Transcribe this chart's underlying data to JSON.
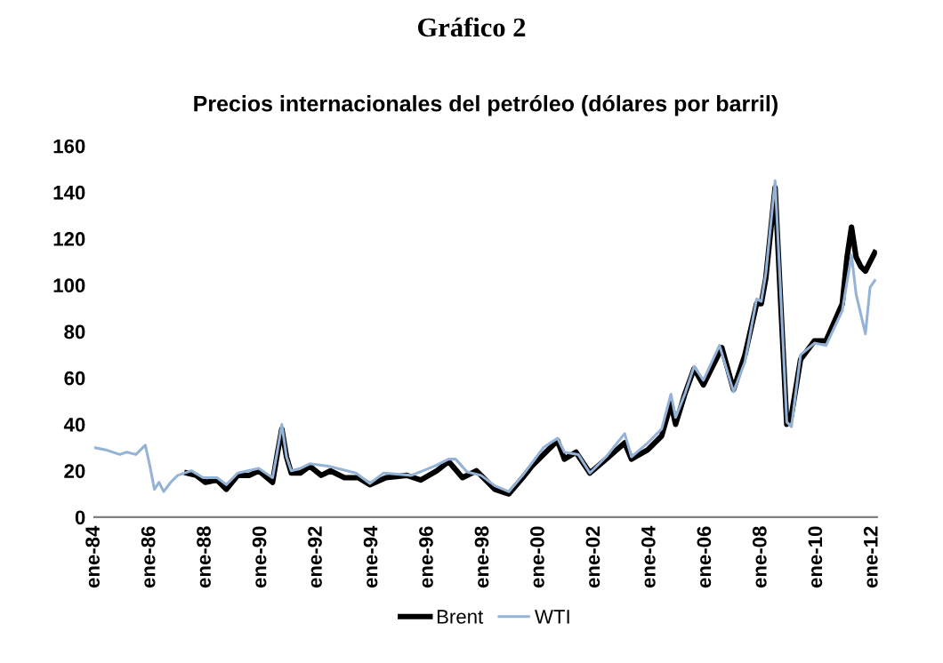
{
  "chart_data": {
    "type": "line",
    "title": "Gráfico 2",
    "subtitle": "Precios internacionales del petróleo (dólares por barril)",
    "xlim": [
      "1984-01",
      "2012-03"
    ],
    "xticks": [
      {
        "value": "1984-01",
        "label": "ene-84"
      },
      {
        "value": "1986-01",
        "label": "ene-86"
      },
      {
        "value": "1988-01",
        "label": "ene-88"
      },
      {
        "value": "1990-01",
        "label": "ene-90"
      },
      {
        "value": "1992-01",
        "label": "ene-92"
      },
      {
        "value": "1994-01",
        "label": "ene-94"
      },
      {
        "value": "1996-01",
        "label": "ene-96"
      },
      {
        "value": "1998-01",
        "label": "ene-98"
      },
      {
        "value": "2000-01",
        "label": "ene-00"
      },
      {
        "value": "2002-01",
        "label": "ene-02"
      },
      {
        "value": "2004-01",
        "label": "ene-04"
      },
      {
        "value": "2006-01",
        "label": "ene-06"
      },
      {
        "value": "2008-01",
        "label": "ene-08"
      },
      {
        "value": "2010-01",
        "label": "ene-10"
      },
      {
        "value": "2012-01",
        "label": "ene-12"
      }
    ],
    "ylim": [
      0,
      160
    ],
    "yticks": [
      0,
      20,
      40,
      60,
      80,
      100,
      120,
      140,
      160
    ],
    "grid": false,
    "legend": "bottom",
    "series": [
      {
        "name": "Brent",
        "color": "#000000",
        "x": [
          "1987-05",
          "1987-09",
          "1988-01",
          "1988-06",
          "1988-10",
          "1989-03",
          "1989-08",
          "1989-12",
          "1990-06",
          "1990-08",
          "1990-10",
          "1990-12",
          "1991-02",
          "1991-06",
          "1991-10",
          "1992-03",
          "1992-07",
          "1993-01",
          "1993-07",
          "1993-12",
          "1994-07",
          "1995-04",
          "1995-10",
          "1996-05",
          "1996-10",
          "1997-04",
          "1997-10",
          "1998-06",
          "1998-12",
          "1999-06",
          "1999-10",
          "2000-03",
          "2000-09",
          "2000-12",
          "2001-05",
          "2001-11",
          "2002-06",
          "2003-02",
          "2003-05",
          "2003-12",
          "2004-06",
          "2004-10",
          "2004-12",
          "2005-04",
          "2005-08",
          "2005-12",
          "2006-08",
          "2007-01",
          "2007-06",
          "2007-11",
          "2008-01",
          "2008-03",
          "2008-07",
          "2008-09",
          "2008-12",
          "2009-02",
          "2009-06",
          "2009-12",
          "2010-05",
          "2010-12",
          "2011-02",
          "2011-04",
          "2011-06",
          "2011-08",
          "2011-10",
          "2011-12",
          "2012-02"
        ],
        "values": [
          19,
          18,
          15,
          16,
          12,
          18,
          18,
          20,
          15,
          27,
          38,
          26,
          19,
          19,
          22,
          18,
          20,
          17,
          17,
          14,
          17,
          18,
          16,
          20,
          24,
          17,
          20,
          12,
          10,
          17,
          22,
          27,
          33,
          25,
          28,
          19,
          25,
          32,
          25,
          29,
          35,
          49,
          40,
          53,
          64,
          57,
          73,
          55,
          70,
          92,
          92,
          103,
          142,
          100,
          40,
          44,
          68,
          76,
          76,
          92,
          112,
          125,
          112,
          108,
          106,
          110,
          114
        ]
      },
      {
        "name": "WTI",
        "color": "#95b3d7",
        "x": [
          "1984-01",
          "1984-06",
          "1984-12",
          "1985-03",
          "1985-07",
          "1985-11",
          "1986-01",
          "1986-03",
          "1986-05",
          "1986-07",
          "1986-10",
          "1987-01",
          "1987-07",
          "1987-12",
          "1988-06",
          "1988-10",
          "1989-03",
          "1989-12",
          "1990-06",
          "1990-08",
          "1990-10",
          "1990-12",
          "1991-02",
          "1991-06",
          "1991-10",
          "1992-06",
          "1993-06",
          "1993-12",
          "1994-06",
          "1995-06",
          "1996-04",
          "1996-10",
          "1997-01",
          "1997-06",
          "1997-12",
          "1998-06",
          "1998-12",
          "1999-06",
          "1999-12",
          "2000-03",
          "2000-09",
          "2000-12",
          "2001-06",
          "2001-11",
          "2002-06",
          "2003-02",
          "2003-05",
          "2003-12",
          "2004-06",
          "2004-10",
          "2004-12",
          "2005-04",
          "2005-08",
          "2005-12",
          "2006-07",
          "2007-01",
          "2007-06",
          "2007-11",
          "2008-01",
          "2008-03",
          "2008-07",
          "2008-09",
          "2008-12",
          "2009-02",
          "2009-06",
          "2009-12",
          "2010-05",
          "2010-12",
          "2011-04",
          "2011-06",
          "2011-10",
          "2011-12",
          "2012-02"
        ],
        "values": [
          30,
          29,
          27,
          28,
          27,
          31,
          22,
          12,
          15,
          11,
          15,
          18,
          20,
          17,
          17,
          14,
          19,
          21,
          17,
          28,
          40,
          26,
          20,
          21,
          23,
          22,
          19,
          14.5,
          19,
          18,
          22,
          25,
          25,
          19.5,
          18,
          13.5,
          11,
          18,
          26,
          30,
          34,
          28,
          27,
          19,
          26,
          36,
          26,
          32,
          38,
          53,
          43,
          53,
          65,
          59,
          74,
          54,
          67,
          94,
          93,
          105,
          145,
          104,
          41,
          39,
          70,
          75,
          74,
          89,
          113,
          96,
          79,
          99,
          102
        ]
      }
    ]
  }
}
